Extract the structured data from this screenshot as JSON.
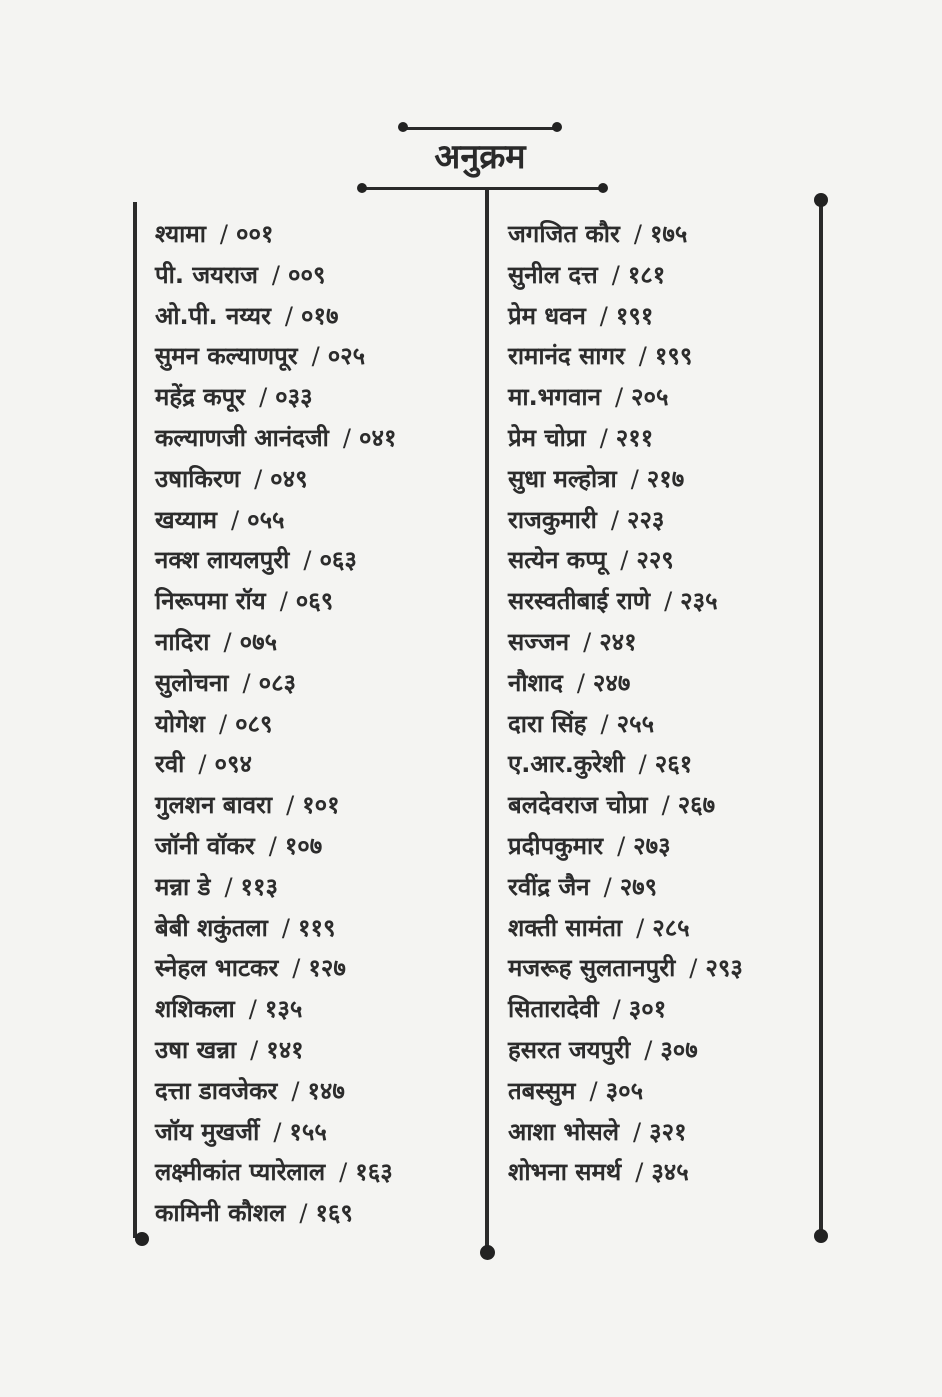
{
  "title": "अनुक्रम",
  "left_column": [
    {
      "name": "श्यामा",
      "page": "००१"
    },
    {
      "name": "पी. जयराज",
      "page": "००९"
    },
    {
      "name": "ओ.पी. नय्यर",
      "page": "०१७"
    },
    {
      "name": "सुमन कल्याणपूर",
      "page": "०२५"
    },
    {
      "name": "महेंद्र कपूर",
      "page": "०३३"
    },
    {
      "name": "कल्याणजी आनंदजी",
      "page": "०४१"
    },
    {
      "name": "उषाकिरण",
      "page": "०४९"
    },
    {
      "name": "खय्याम",
      "page": "०५५"
    },
    {
      "name": "नक्श लायलपुरी",
      "page": "०६३"
    },
    {
      "name": "निरूपमा रॉय",
      "page": "०६९"
    },
    {
      "name": "नादिरा",
      "page": "०७५"
    },
    {
      "name": "सुलोचना",
      "page": "०८३"
    },
    {
      "name": "योगेश",
      "page": "०८९"
    },
    {
      "name": "रवी",
      "page": "०९४"
    },
    {
      "name": "गुलशन बावरा",
      "page": "१०१"
    },
    {
      "name": "जॉनी वॉकर",
      "page": "१०७"
    },
    {
      "name": "मन्ना डे",
      "page": "११३"
    },
    {
      "name": "बेबी शकुंतला",
      "page": "११९"
    },
    {
      "name": "स्नेहल भाटकर",
      "page": "१२७"
    },
    {
      "name": "शशिकला",
      "page": "१३५"
    },
    {
      "name": "उषा खन्ना",
      "page": "१४१"
    },
    {
      "name": "दत्ता डावजेकर",
      "page": "१४७"
    },
    {
      "name": "जॉय मुखर्जी",
      "page": "१५५"
    },
    {
      "name": "लक्ष्मीकांत प्यारेलाल",
      "page": "१६३"
    },
    {
      "name": "कामिनी कौशल",
      "page": "१६९"
    }
  ],
  "right_column": [
    {
      "name": "जगजित कौर",
      "page": "१७५"
    },
    {
      "name": "सुनील दत्त",
      "page": "१८१"
    },
    {
      "name": "प्रेम धवन",
      "page": "१९१"
    },
    {
      "name": "रामानंद सागर",
      "page": "१९९"
    },
    {
      "name": "मा.भगवान",
      "page": "२०५"
    },
    {
      "name": "प्रेम चोप्रा",
      "page": "२११"
    },
    {
      "name": "सुधा मल्होत्रा",
      "page": "२१७"
    },
    {
      "name": "राजकुमारी",
      "page": "२२३"
    },
    {
      "name": "सत्येन कप्पू",
      "page": "२२९"
    },
    {
      "name": "सरस्वतीबाई राणे",
      "page": "२३५"
    },
    {
      "name": "सज्जन",
      "page": "२४१"
    },
    {
      "name": "नौशाद",
      "page": "२४७"
    },
    {
      "name": "दारा सिंह",
      "page": "२५५"
    },
    {
      "name": "ए.आर.कुरेशी",
      "page": "२६१"
    },
    {
      "name": "बलदेवराज चोप्रा",
      "page": "२६७"
    },
    {
      "name": "प्रदीपकुमार",
      "page": "२७३"
    },
    {
      "name": "रवींद्र जैन",
      "page": "२७९"
    },
    {
      "name": "शक्ती सामंता",
      "page": "२८५"
    },
    {
      "name": "मजरूह सुलतानपुरी",
      "page": "२९३"
    },
    {
      "name": "सितारादेवी",
      "page": "३०१"
    },
    {
      "name": "हसरत जयपुरी",
      "page": "३०७"
    },
    {
      "name": "तबस्सुम",
      "page": "३०५"
    },
    {
      "name": "आशा भोसले",
      "page": "३२१"
    },
    {
      "name": "शोभना समर्थ",
      "page": "३४५"
    }
  ],
  "separator": "/"
}
